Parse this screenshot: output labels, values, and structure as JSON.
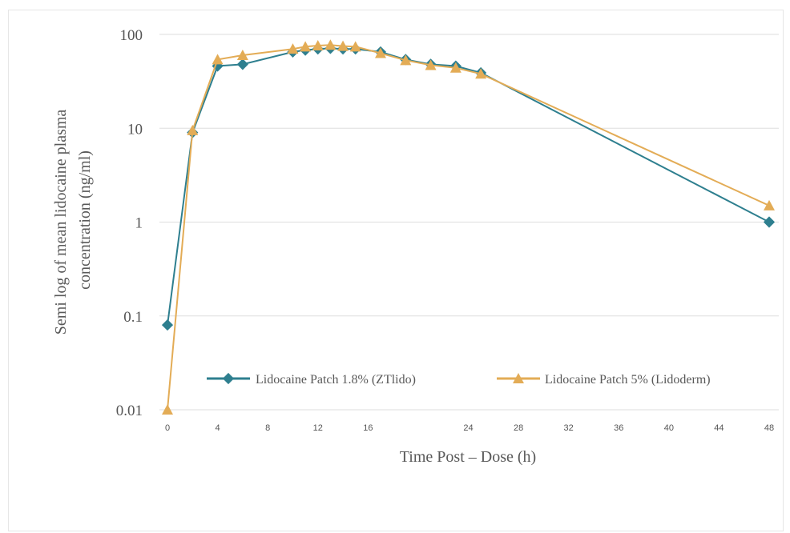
{
  "chart_data": {
    "type": "line",
    "scale_y": "log",
    "ylabel_lines": [
      "Semi log of mean lidocaine plasma",
      "concentration (ng/ml)"
    ],
    "xlabel": "Time Post – Dose (h)",
    "ylim": [
      0.01,
      100
    ],
    "y_ticks": [
      {
        "value": 100,
        "label": "100"
      },
      {
        "value": 10,
        "label": "10"
      },
      {
        "value": 1,
        "label": "1"
      },
      {
        "value": 0.1,
        "label": "0.1"
      },
      {
        "value": 0.01,
        "label": "0.01"
      }
    ],
    "x_ticks": [
      {
        "value": 0,
        "label": "0"
      },
      {
        "value": 4,
        "label": "4"
      },
      {
        "value": 8,
        "label": "8"
      },
      {
        "value": 12,
        "label": "12"
      },
      {
        "value": 16,
        "label": "16"
      },
      {
        "value": 24,
        "label": "24"
      },
      {
        "value": 28,
        "label": "28"
      },
      {
        "value": 32,
        "label": "32"
      },
      {
        "value": 36,
        "label": "36"
      },
      {
        "value": 40,
        "label": "40"
      },
      {
        "value": 44,
        "label": "44"
      },
      {
        "value": 48,
        "label": "48"
      }
    ],
    "grid": true,
    "legend_position": "bottom-inside",
    "series": [
      {
        "name": "Lidocaine Patch 1.8% (ZTlido)",
        "color": "#2e7f8f",
        "marker": "diamond",
        "x": [
          0,
          2,
          4,
          6,
          10,
          11,
          12,
          13,
          14,
          15,
          17,
          19,
          21,
          23,
          25,
          48
        ],
        "y": [
          0.08,
          9,
          46,
          48,
          65,
          68,
          70,
          71,
          70,
          70,
          65,
          54,
          48,
          46,
          39,
          1
        ]
      },
      {
        "name": "Lidocaine Patch 5% (Lidoderm)",
        "color": "#e3ac56",
        "marker": "triangle",
        "x": [
          0,
          2,
          4,
          6,
          10,
          11,
          12,
          13,
          14,
          15,
          17,
          19,
          21,
          23,
          25,
          48
        ],
        "y": [
          0.01,
          9.5,
          54,
          60,
          70,
          74,
          76,
          77,
          75,
          74,
          63,
          53,
          47,
          44,
          38,
          1.5
        ]
      }
    ]
  }
}
